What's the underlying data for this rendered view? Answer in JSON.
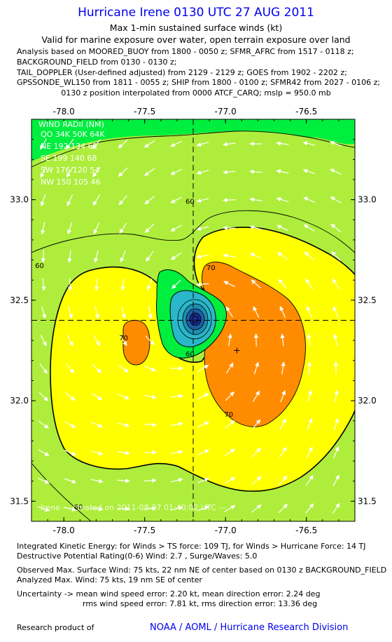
{
  "header": {
    "title": "Hurricane Irene 0130 UTC 27 AUG 2011",
    "subtitle1": "Max 1-min sustained surface winds (kt)",
    "subtitle2": "Valid for marine exposure over water, open terrain exposure over land",
    "analysis_lines": [
      "Analysis based on MOORED_BUOY from 1800 - 0050 z; SFMR_AFRC from 1517 - 0118 z;",
      "BACKGROUND_FIELD from 0130 - 0130 z;",
      "TAIL_DOPPLER (User-defined adjusted) from 2129 - 2129 z; GOES from 1902 - 2202 z;",
      "GPSSONDE_WL150 from 1811 - 0055 z; SHIP from 1800 - 0100 z; SFMR42 from 2027 - 0106 z;"
    ],
    "position_note": "0130 z position interpolated from 0000 ATCF_CARQ; mslp = 950.0 mb"
  },
  "chart_data": {
    "type": "heatmap",
    "x_ticks": [
      "-78.0",
      "-77.5",
      "-77.0",
      "-76.5"
    ],
    "x_tick_values": [
      -78.0,
      -77.5,
      -77.0,
      -76.5
    ],
    "y_ticks": [
      "33.0",
      "32.5",
      "32.0",
      "31.5"
    ],
    "y_tick_values": [
      33.0,
      32.5,
      32.0,
      31.5
    ],
    "xlim": [
      -78.2,
      -76.2
    ],
    "ylim": [
      31.4,
      33.4
    ],
    "center": {
      "lon": -77.2,
      "lat": 32.4
    },
    "max_wind_location": {
      "lon": -76.93,
      "lat": 32.25
    },
    "contour_labels": [
      {
        "text": "60",
        "lon": -77.22,
        "lat": 32.98
      },
      {
        "text": "60",
        "lon": -78.15,
        "lat": 32.66
      },
      {
        "text": "70",
        "lon": -77.63,
        "lat": 32.3
      },
      {
        "text": "70",
        "lon": -77.09,
        "lat": 32.65
      },
      {
        "text": "70",
        "lon": -76.98,
        "lat": 31.92
      },
      {
        "text": "60",
        "lon": -77.22,
        "lat": 32.22
      },
      {
        "text": "60",
        "lon": -77.91,
        "lat": 31.46
      }
    ],
    "fill_colors": {
      "50-60": "#aeed3c",
      "60-70": "#ffff00",
      "70+": "#ff8c00",
      "40-50": "#00ee3e",
      "core": "#2ab7c9",
      "eye": "#1a2a8a"
    },
    "wind_radii": {
      "title": "WIND RADII (NM)",
      "header": "QO 34K 50K 64K",
      "rows": [
        "NE 192 134 62",
        "SE 199 140 68",
        "SW 176 120 54",
        "NW 150 105 46"
      ]
    },
    "watermark": "Irene — created on 2011-08-27 01:40:02 UTC —"
  },
  "footer": {
    "lines": [
      "Integrated Kinetic Energy: for Winds > TS force: 109 TJ, for Winds > Hurricane Force: 14 TJ",
      "Destructive Potential Rating(0-6) Wind: 2.7 , Surge/Waves: 5.0",
      "Observed Max. Surface Wind: 75 kts, 22 nm NE of center based on 0130 z BACKGROUND_FIELD",
      "Analyzed Max. Wind: 75 kts, 19 nm SE of center",
      "Uncertainty -> mean wind speed error: 2.20 kt,  mean direction error: 2.24 deg",
      "rms wind speed error: 7.81 kt,  rms direction error: 13.36 deg"
    ],
    "research_label": "Research product of",
    "noaa": "NOAA / AOML / Hurricane Research Division"
  }
}
